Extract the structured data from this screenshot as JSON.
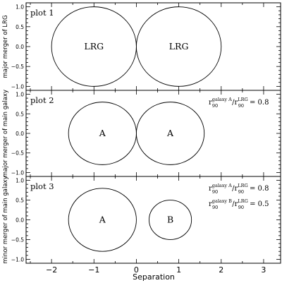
{
  "chart_data": {
    "type": "diagram",
    "xlabel": "Separation",
    "xlim": [
      -2.6,
      3.4
    ],
    "xticks": [
      -2,
      -1,
      0,
      1,
      2,
      3
    ],
    "xtick_labels": [
      "−2",
      "−1",
      "0",
      "1",
      "2",
      "3"
    ],
    "panels": [
      {
        "title": "plot 1",
        "ylabel": "major merger of LRG",
        "ylim": [
          -1.1,
          1.1
        ],
        "yticks": [
          -1.0,
          -0.5,
          0.0,
          0.5,
          1.0
        ],
        "ytick_labels": [
          "−1.0",
          "−0.5",
          "0.0",
          "0.5",
          "1.0"
        ],
        "circles": [
          {
            "x": -1.0,
            "y": 0.0,
            "r": 1.0,
            "label": "LRG"
          },
          {
            "x": 1.0,
            "y": 0.0,
            "r": 1.0,
            "label": "LRG"
          }
        ],
        "annotations": []
      },
      {
        "title": "plot 2",
        "ylabel": "major merger of main galaxy",
        "ylim": [
          -1.1,
          1.1
        ],
        "yticks": [
          -1.0,
          -0.5,
          0.0,
          0.5,
          1.0
        ],
        "ytick_labels": [
          "−1.0",
          "−0.5",
          "0.0",
          "0.5",
          "1.0"
        ],
        "circles": [
          {
            "x": -0.8,
            "y": 0.0,
            "r": 0.8,
            "label": "A"
          },
          {
            "x": 0.8,
            "y": 0.0,
            "r": 0.8,
            "label": "A"
          }
        ],
        "annotations": [
          {
            "r": "r",
            "num_sup": "galaxy A",
            "den_sup": "LRG",
            "sub": "90",
            "tail": "= 0.8"
          }
        ]
      },
      {
        "title": "plot 3",
        "ylabel": "minor merger of main galaxy",
        "ylim": [
          -1.1,
          1.1
        ],
        "yticks": [
          -1.0,
          -0.5,
          0.0,
          0.5,
          1.0
        ],
        "ytick_labels": [
          "−1.0",
          "−0.5",
          "0.0",
          "0.5",
          "1.0"
        ],
        "circles": [
          {
            "x": -0.8,
            "y": 0.0,
            "r": 0.8,
            "label": "A"
          },
          {
            "x": 0.8,
            "y": 0.0,
            "r": 0.5,
            "label": "B"
          }
        ],
        "annotations": [
          {
            "r": "r",
            "num_sup": "galaxy A",
            "den_sup": "LRG",
            "sub": "90",
            "tail": "= 0.8"
          },
          {
            "r": "r",
            "num_sup": "galaxy B",
            "den_sup": "LRG",
            "sub": "90",
            "tail": "= 0.5"
          }
        ]
      }
    ]
  }
}
